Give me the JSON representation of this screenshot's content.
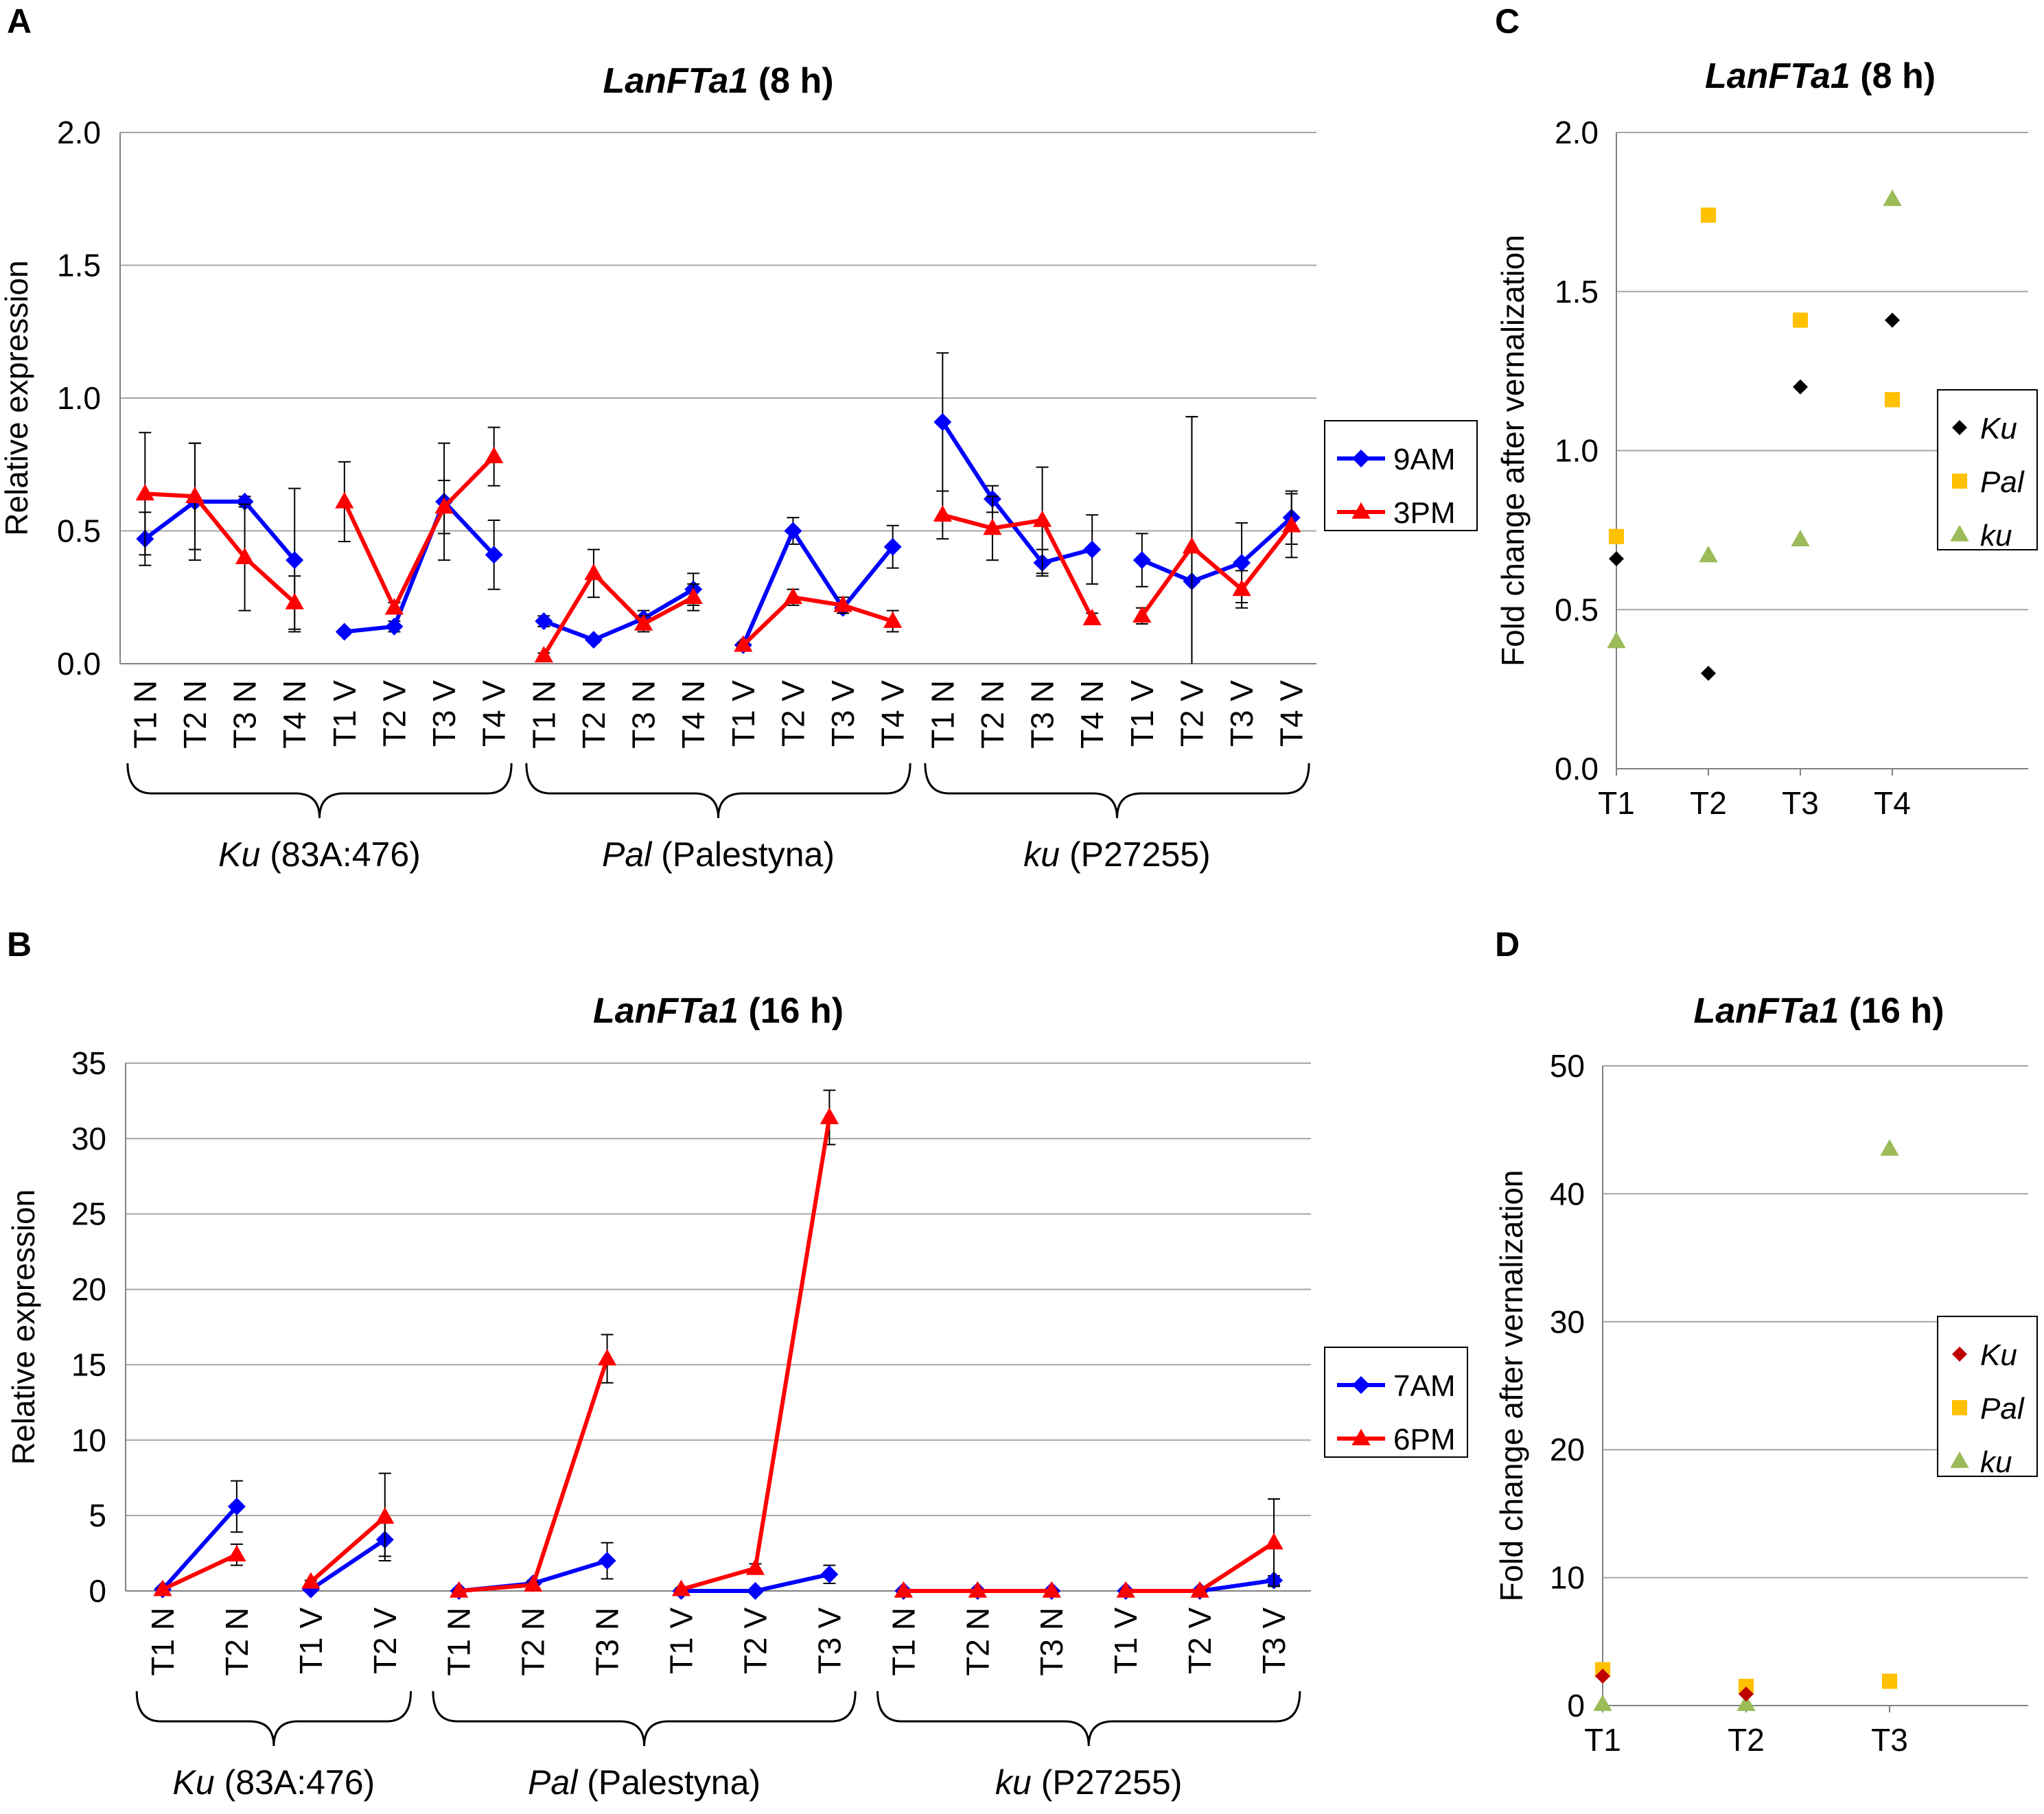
{
  "colors": {
    "blue": "#0000ff",
    "red": "#ff0000",
    "black": "#000000",
    "gold": "#ffc000",
    "green": "#9bbb59",
    "darkred": "#c00000",
    "grid": "#a6a6a6"
  },
  "chart_data": [
    {
      "panel": "A",
      "type": "line",
      "title_italic": "LanFTa1",
      "title_rest": " (8 h)",
      "ylabel": "Relative expression",
      "ylim": [
        0,
        2.0
      ],
      "yticks": [
        "0.0",
        "0.5",
        "1.0",
        "1.5",
        "2.0"
      ],
      "ytick_values": [
        0,
        0.5,
        1.0,
        1.5,
        2.0
      ],
      "categories": [
        "T1 N",
        "T2 N",
        "T3 N",
        "T4 N",
        "T1 V",
        "T2 V",
        "T3 V",
        "T4 V",
        "T1 N",
        "T2 N",
        "T3 N",
        "T4 N",
        "T1 V",
        "T2 V",
        "T3 V",
        "T4 V",
        "T1 N",
        "T2 N",
        "T3 N",
        "T4 N",
        "T1 V",
        "T2 V",
        "T3 V",
        "T4 V"
      ],
      "segments": [
        [
          0,
          3
        ],
        [
          4,
          7
        ],
        [
          8,
          11
        ],
        [
          12,
          15
        ],
        [
          16,
          19
        ],
        [
          20,
          23
        ]
      ],
      "groups": [
        {
          "italic": "Ku",
          "rest": " (83A:476)",
          "from": 0,
          "to": 7
        },
        {
          "italic": "Pal",
          "rest": " (Palestyna)",
          "from": 8,
          "to": 15
        },
        {
          "italic": "ku",
          "rest": " (P27255)",
          "from": 16,
          "to": 23
        }
      ],
      "series": [
        {
          "name": "9AM",
          "color": "#0000ff",
          "marker": "diamond",
          "values": [
            0.47,
            0.61,
            0.61,
            0.39,
            0.12,
            0.14,
            0.61,
            0.41,
            0.16,
            0.09,
            0.17,
            0.28,
            0.07,
            0.5,
            0.21,
            0.44,
            0.91,
            0.62,
            0.38,
            0.43,
            0.39,
            0.31,
            0.38,
            0.55
          ],
          "errors": [
            0.1,
            0.22,
            0.02,
            0.27,
            0.01,
            0.02,
            0.22,
            0.13,
            0.02,
            0.01,
            0.03,
            0.06,
            0.01,
            0.05,
            0.02,
            0.08,
            0.26,
            0.05,
            0.05,
            0.13,
            0.1,
            0.62,
            0.15,
            0.1
          ]
        },
        {
          "name": "3PM",
          "color": "#ff0000",
          "marker": "triangle",
          "values": [
            0.64,
            0.63,
            0.4,
            0.23,
            0.61,
            0.21,
            0.59,
            0.78,
            0.03,
            0.34,
            0.15,
            0.25,
            0.07,
            0.25,
            0.22,
            0.16,
            0.56,
            0.51,
            0.54,
            0.17,
            0.18,
            0.44,
            0.28,
            0.52
          ],
          "errors": [
            0.23,
            0.2,
            0.2,
            0.1,
            0.15,
            0.02,
            0.1,
            0.11,
            0.01,
            0.09,
            0.03,
            0.05,
            0.01,
            0.03,
            0.03,
            0.04,
            0.09,
            0.12,
            0.2,
            0.02,
            0.03,
            0.49,
            0.07,
            0.12
          ]
        }
      ],
      "legend": [
        "9AM",
        "3PM"
      ]
    },
    {
      "panel": "B",
      "type": "line",
      "title_italic": "LanFTa1",
      "title_rest": " (16 h)",
      "ylabel": "Relative expression",
      "ylim": [
        0,
        35
      ],
      "yticks": [
        "0",
        "5",
        "10",
        "15",
        "20",
        "25",
        "30",
        "35"
      ],
      "ytick_values": [
        0,
        5,
        10,
        15,
        20,
        25,
        30,
        35
      ],
      "categories": [
        "T1 N",
        "T2 N",
        "T1 V",
        "T2 V",
        "T1 N",
        "T2 N",
        "T3 N",
        "T1 V",
        "T2 V",
        "T3 V",
        "T1 N",
        "T2 N",
        "T3 N",
        "T1 V",
        "T2 V",
        "T3 V"
      ],
      "segments": [
        [
          0,
          1
        ],
        [
          2,
          3
        ],
        [
          4,
          6
        ],
        [
          7,
          9
        ],
        [
          10,
          12
        ],
        [
          13,
          15
        ]
      ],
      "groups": [
        {
          "italic": "Ku",
          "rest": " (83A:476)",
          "from": 0,
          "to": 3
        },
        {
          "italic": "Pal",
          "rest": " (Palestyna)",
          "from": 4,
          "to": 9
        },
        {
          "italic": "ku",
          "rest": " (P27255)",
          "from": 10,
          "to": 15
        }
      ],
      "series": [
        {
          "name": "7AM",
          "color": "#0000ff",
          "marker": "diamond",
          "values": [
            0.1,
            5.6,
            0.1,
            3.4,
            0.0,
            0.5,
            2.0,
            0.0,
            0.0,
            1.1,
            0.0,
            0.0,
            0.0,
            0.0,
            0.0,
            0.7
          ],
          "errors": [
            0.1,
            1.7,
            0.1,
            1.1,
            0.05,
            0.2,
            1.2,
            0.05,
            0.05,
            0.6,
            0.05,
            0.05,
            0.05,
            0.05,
            0.05,
            0.3
          ]
        },
        {
          "name": "6PM",
          "color": "#ff0000",
          "marker": "triangle",
          "values": [
            0.1,
            2.4,
            0.6,
            4.9,
            0.0,
            0.4,
            15.4,
            0.1,
            1.5,
            31.4,
            0.0,
            0.0,
            0.0,
            0.0,
            0.0,
            3.2
          ],
          "errors": [
            0.1,
            0.7,
            0.1,
            2.9,
            0.05,
            0.2,
            1.6,
            0.1,
            0.3,
            1.8,
            0.05,
            0.05,
            0.05,
            0.05,
            0.05,
            2.9
          ]
        }
      ],
      "legend": [
        "7AM",
        "6PM"
      ]
    },
    {
      "panel": "C",
      "type": "scatter",
      "title_italic": "LanFTa1",
      "title_rest": " (8 h)",
      "ylabel": "Fold change after vernalization",
      "ylim": [
        0,
        2.0
      ],
      "yticks": [
        "0.0",
        "0.5",
        "1.0",
        "1.5",
        "2.0"
      ],
      "ytick_values": [
        0,
        0.5,
        1.0,
        1.5,
        2.0
      ],
      "categories": [
        "T1",
        "T2",
        "T3",
        "T4"
      ],
      "series": [
        {
          "name": "Ku",
          "color": "#000000",
          "marker": "diamond",
          "values": [
            0.66,
            0.3,
            1.2,
            1.41
          ]
        },
        {
          "name": "Pal",
          "color": "#ffc000",
          "marker": "square",
          "values": [
            0.73,
            1.74,
            1.41,
            1.16
          ]
        },
        {
          "name": "ku",
          "color": "#9bbb59",
          "marker": "triangle",
          "values": [
            0.4,
            0.67,
            0.72,
            1.79
          ]
        }
      ],
      "legend": [
        "Ku",
        "Pal",
        "ku"
      ]
    },
    {
      "panel": "D",
      "type": "scatter",
      "title_italic": "LanFTa1",
      "title_rest": " (16 h)",
      "ylabel": "Fold change after vernalization",
      "ylim": [
        0,
        50
      ],
      "yticks": [
        "0",
        "10",
        "20",
        "30",
        "40",
        "50"
      ],
      "ytick_values": [
        0,
        10,
        20,
        30,
        40,
        50
      ],
      "categories": [
        "T1",
        "T2",
        "T3"
      ],
      "series": [
        {
          "name": "Ku",
          "color": "#c00000",
          "marker": "diamond",
          "values": [
            2.3,
            0.9,
            null
          ]
        },
        {
          "name": "Pal",
          "color": "#ffc000",
          "marker": "square",
          "values": [
            2.8,
            1.5,
            1.9
          ]
        },
        {
          "name": "ku",
          "color": "#9bbb59",
          "marker": "triangle",
          "values": [
            0.1,
            0.1,
            43.5
          ]
        }
      ],
      "legend": [
        "Ku",
        "Pal",
        "ku"
      ]
    }
  ]
}
